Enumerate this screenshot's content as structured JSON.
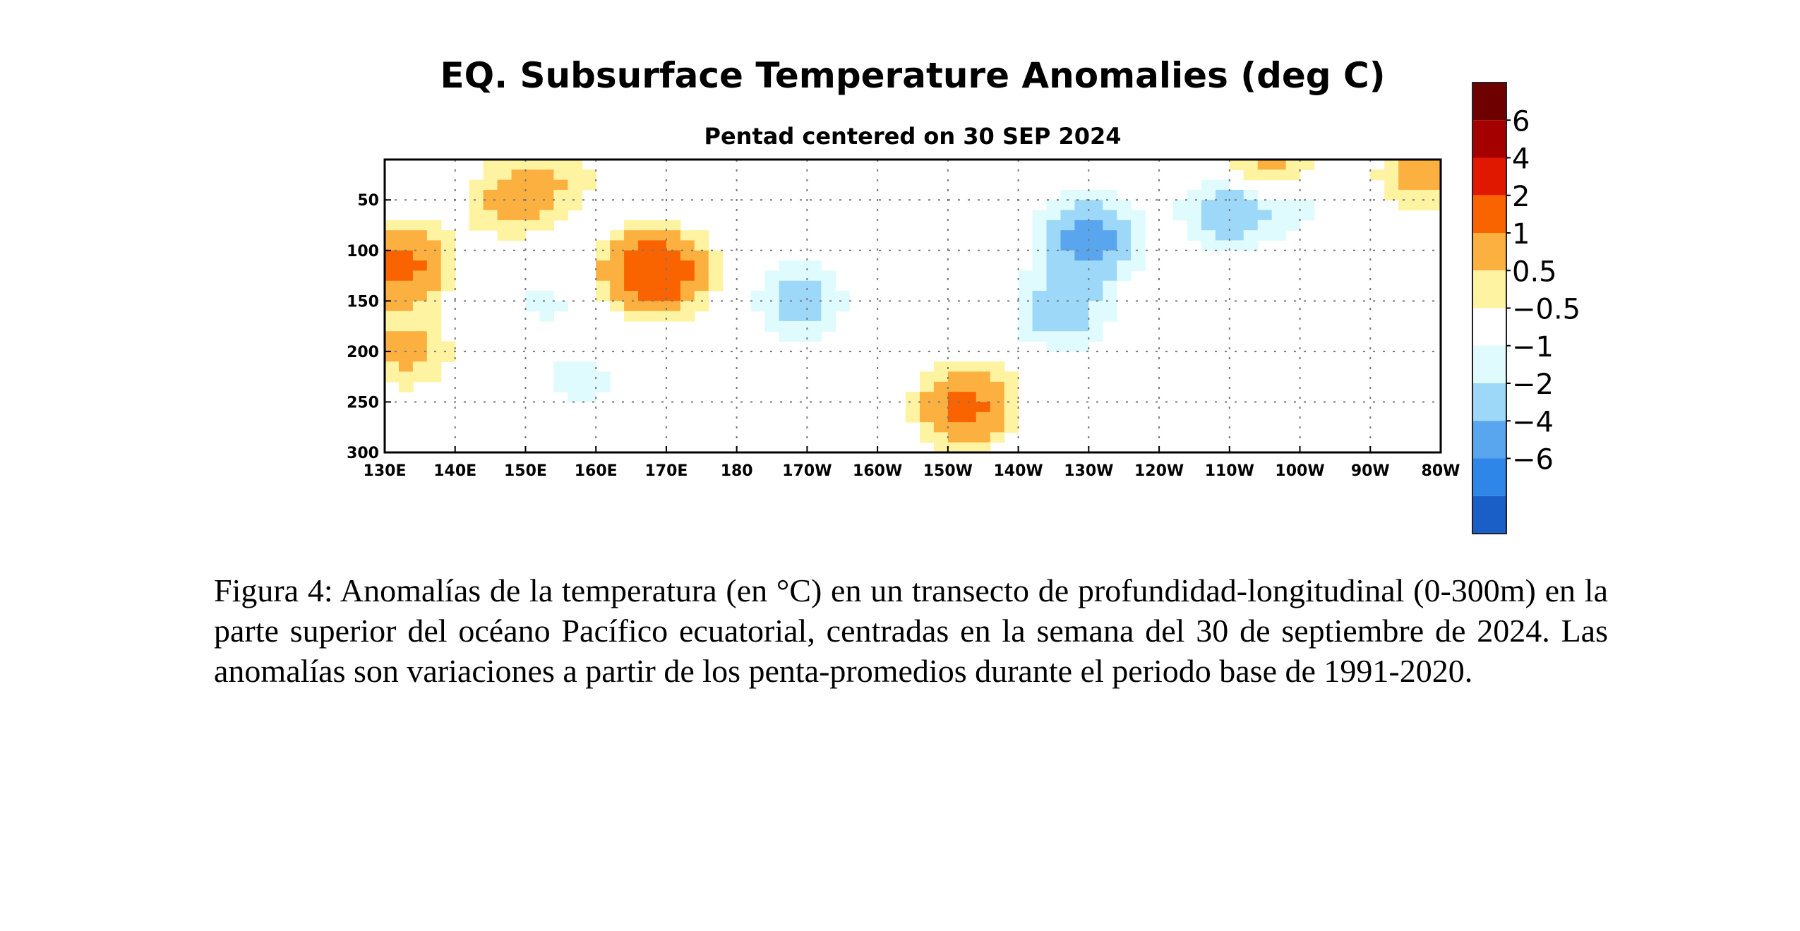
{
  "chart_data": {
    "type": "heatmap",
    "title": "EQ. Subsurface Temperature Anomalies (deg C)",
    "subtitle": "Pentad centered on 30 SEP 2024",
    "xlabel": "",
    "ylabel": "",
    "x_ticks": [
      "130E",
      "140E",
      "150E",
      "160E",
      "170E",
      "180",
      "170W",
      "160W",
      "150W",
      "140W",
      "130W",
      "120W",
      "110W",
      "100W",
      "90W",
      "80W"
    ],
    "y_ticks": [
      "50",
      "100",
      "150",
      "200",
      "250",
      "300"
    ],
    "xlim": [
      130,
      280
    ],
    "ylim": [
      300,
      10
    ],
    "grid": true,
    "legend": "right",
    "colorbar": {
      "labels": [
        "6",
        "4",
        "2",
        "1",
        "0.5",
        "−0.5",
        "−1",
        "−2",
        "−4",
        "−6"
      ],
      "colors": [
        "#6e0000",
        "#a50000",
        "#e01800",
        "#fa6400",
        "#fbb040",
        "#fdf3a0",
        "#ffffff",
        "#e0fbfd",
        "#9ed8f8",
        "#5aa6ee",
        "#2e86e8",
        "#1a5fc8"
      ]
    },
    "anomaly_features": [
      {
        "lon": 132,
        "depth": 115,
        "value": 2.5
      },
      {
        "lon": 133,
        "depth": 200,
        "value": 1.2
      },
      {
        "lon": 148,
        "depth": 50,
        "value": 1.3
      },
      {
        "lon": 167,
        "depth": 120,
        "value": 1.4
      },
      {
        "lon": 169,
        "depth": 122,
        "value": 2.3
      },
      {
        "lon": 155,
        "depth": 25,
        "value": 0.7
      },
      {
        "lon": 158,
        "depth": 230,
        "value": -0.7
      },
      {
        "lon": 153,
        "depth": 150,
        "value": -0.6
      },
      {
        "lon": 189,
        "depth": 150,
        "value": -1.3
      },
      {
        "lon": 212,
        "depth": 260,
        "value": 0.8
      },
      {
        "lon": 213,
        "depth": 250,
        "value": 1.6
      },
      {
        "lon": 230,
        "depth": 90,
        "value": -2.6
      },
      {
        "lon": 226,
        "depth": 160,
        "value": -1.5
      },
      {
        "lon": 250,
        "depth": 60,
        "value": -1.6
      },
      {
        "lon": 258,
        "depth": 40,
        "value": -1.3
      },
      {
        "lon": 256,
        "depth": 18,
        "value": 2.2
      },
      {
        "lon": 277,
        "depth": 25,
        "value": 1.2
      }
    ]
  },
  "caption": "Figura 4: Anomalías de la temperatura (en °C) en un transecto de profundidad-longitudinal (0-300m) en la parte superior del océano Pacífico ecuatorial, centradas en la semana del 30 de septiembre de 2024. Las anomalías son variaciones a partir de los penta-promedios durante el periodo base de 1991-2020."
}
